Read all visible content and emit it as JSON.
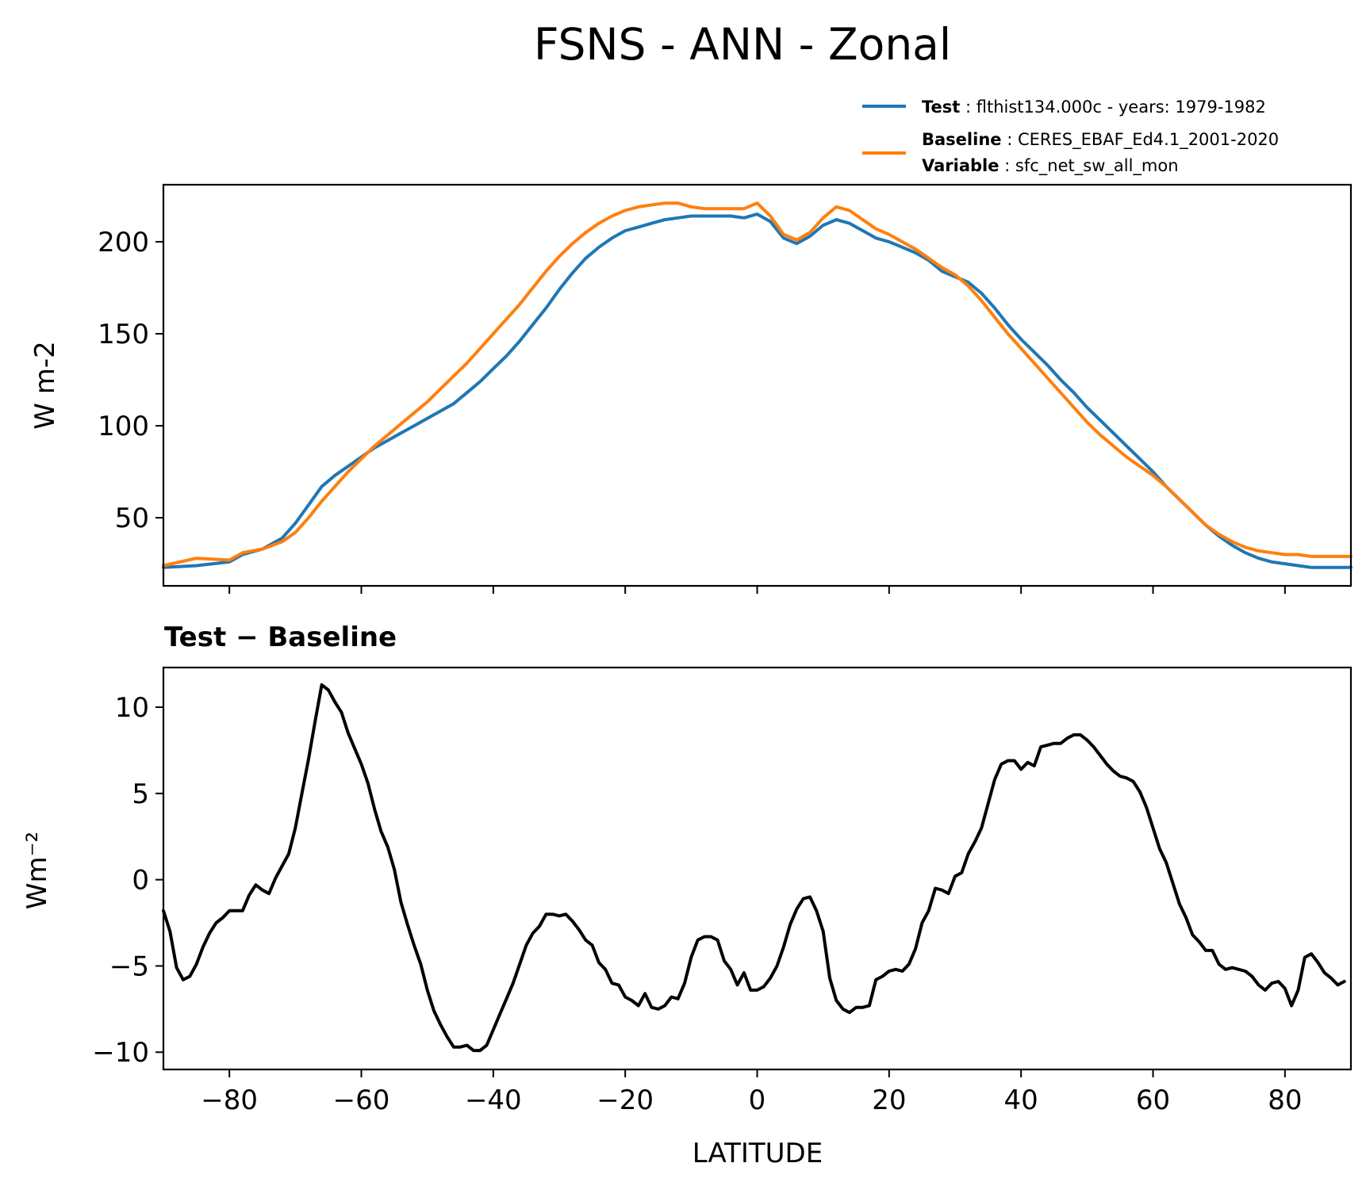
{
  "chart_data": {
    "title": "FSNS - ANN - Zonal",
    "xlabel": "LATITUDE",
    "xlim": [
      -90,
      90
    ],
    "xticks": [
      -80,
      -60,
      -40,
      -20,
      0,
      20,
      40,
      60,
      80
    ],
    "xtick_labels": [
      "−80",
      "−60",
      "−40",
      "−20",
      "0",
      "20",
      "40",
      "60",
      "80"
    ],
    "legend": {
      "position": "top-right",
      "entries": [
        {
          "key": "Test",
          "text": "flthist134.000c - years: 1979-1982",
          "color": "#1f77b4"
        },
        {
          "key": "Baseline",
          "text": "CERES_EBAF_Ed4.1_2001-2020",
          "color": "#ff7f0e"
        },
        {
          "key": "Variable",
          "text": "sfc_net_sw_all_mon"
        }
      ]
    },
    "panels": [
      {
        "type": "line",
        "ylabel": "W m-2",
        "ylim": [
          13,
          231
        ],
        "yticks": [
          50,
          100,
          150,
          200
        ],
        "ytick_labels": [
          "50",
          "100",
          "150",
          "200"
        ],
        "x": [
          -90,
          -85,
          -80,
          -78,
          -75,
          -72,
          -70,
          -68,
          -66,
          -64,
          -62,
          -60,
          -58,
          -56,
          -54,
          -52,
          -50,
          -48,
          -46,
          -44,
          -42,
          -40,
          -38,
          -36,
          -34,
          -32,
          -30,
          -28,
          -26,
          -24,
          -22,
          -20,
          -18,
          -16,
          -14,
          -12,
          -10,
          -8,
          -6,
          -4,
          -2,
          0,
          2,
          4,
          6,
          8,
          10,
          12,
          14,
          16,
          18,
          20,
          22,
          24,
          26,
          28,
          30,
          32,
          34,
          36,
          38,
          40,
          42,
          44,
          46,
          48,
          50,
          52,
          54,
          56,
          58,
          60,
          62,
          64,
          66,
          68,
          70,
          72,
          74,
          76,
          78,
          80,
          82,
          84,
          86,
          88,
          90
        ],
        "series": [
          {
            "name": "Test",
            "color": "#1f77b4",
            "values": [
              23,
              24,
              26,
              30,
              33,
              39,
              47,
              57,
              67,
              73,
              78,
              83,
              88,
              92,
              96,
              100,
              104,
              108,
              112,
              118,
              124,
              131,
              138,
              146,
              155,
              164,
              174,
              183,
              191,
              197,
              202,
              206,
              208,
              210,
              212,
              213,
              214,
              214,
              214,
              214,
              213,
              215,
              211,
              202,
              199,
              203,
              209,
              212,
              210,
              206,
              202,
              200,
              197,
              194,
              190,
              184,
              181,
              178,
              172,
              164,
              155,
              147,
              140,
              133,
              125,
              118,
              110,
              103,
              96,
              89,
              82,
              75,
              67,
              60,
              53,
              46,
              40,
              35,
              31,
              28,
              26,
              25,
              24,
              23,
              23,
              23,
              23
            ]
          },
          {
            "name": "Baseline",
            "color": "#ff7f0e",
            "values": [
              24,
              28,
              27,
              31,
              33,
              37,
              42,
              50,
              59,
              67,
              75,
              82,
              89,
              95,
              101,
              107,
              113,
              120,
              127,
              134,
              142,
              150,
              158,
              166,
              175,
              184,
              192,
              199,
              205,
              210,
              214,
              217,
              219,
              220,
              221,
              221,
              219,
              218,
              218,
              218,
              218,
              221,
              214,
              204,
              201,
              205,
              213,
              219,
              217,
              212,
              207,
              204,
              200,
              196,
              191,
              186,
              182,
              176,
              168,
              159,
              150,
              142,
              134,
              126,
              118,
              110,
              102,
              95,
              89,
              83,
              78,
              73,
              67,
              60,
              53,
              46,
              41,
              37,
              34,
              32,
              31,
              30,
              30,
              29,
              29,
              29,
              29
            ]
          }
        ]
      },
      {
        "type": "line",
        "title": "Test − Baseline",
        "ylabel": "Wm⁻²",
        "ylim": [
          -11,
          12.3
        ],
        "yticks": [
          -10,
          -5,
          0,
          5,
          10
        ],
        "ytick_labels": [
          "−10",
          "−5",
          "0",
          "5",
          "10"
        ],
        "x": [
          -90,
          -89,
          -88,
          -87,
          -86,
          -85,
          -84,
          -83,
          -82,
          -81,
          -80,
          -79,
          -78,
          -77,
          -76,
          -75,
          -74,
          -73,
          -72,
          -71,
          -70,
          -69,
          -68,
          -67,
          -66,
          -65,
          -64,
          -63,
          -62,
          -61,
          -60,
          -59,
          -58,
          -57,
          -56,
          -55,
          -54,
          -53,
          -52,
          -51,
          -50,
          -49,
          -48,
          -47,
          -46,
          -45,
          -44,
          -43,
          -42,
          -41,
          -40,
          -39,
          -38,
          -37,
          -36,
          -35,
          -34,
          -33,
          -32,
          -31,
          -30,
          -29,
          -28,
          -27,
          -26,
          -25,
          -24,
          -23,
          -22,
          -21,
          -20,
          -19,
          -18,
          -17,
          -16,
          -15,
          -14,
          -13,
          -12,
          -11,
          -10,
          -9,
          -8,
          -7,
          -6,
          -5,
          -4,
          -3,
          -2,
          -1,
          0,
          1,
          2,
          3,
          4,
          5,
          6,
          7,
          8,
          9,
          10,
          11,
          12,
          13,
          14,
          15,
          16,
          17,
          18,
          19,
          20,
          21,
          22,
          23,
          24,
          25,
          26,
          27,
          28,
          29,
          30,
          31,
          32,
          33,
          34,
          35,
          36,
          37,
          38,
          39,
          40,
          41,
          42,
          43,
          44,
          45,
          46,
          47,
          48,
          49,
          50,
          51,
          52,
          53,
          54,
          55,
          56,
          57,
          58,
          59,
          60,
          61,
          62,
          63,
          64,
          65,
          66,
          67,
          68,
          69,
          70,
          71,
          72,
          73,
          74,
          75,
          76,
          77,
          78,
          79,
          80,
          81,
          82,
          83,
          84,
          85,
          86,
          87,
          88,
          89,
          90
        ],
        "series": [
          {
            "name": "Test − Baseline",
            "color": "#000000",
            "values": [
              -1.8,
              -3.0,
              -5.1,
              -5.8,
              -5.6,
              -4.9,
              -3.9,
              -3.1,
              -2.5,
              -2.2,
              -1.8,
              -1.8,
              -1.8,
              -0.9,
              -0.3,
              -0.6,
              -0.8,
              0.1,
              0.8,
              1.5,
              3.0,
              5.0,
              7.0,
              9.2,
              11.3,
              11.0,
              10.3,
              9.7,
              8.5,
              7.6,
              6.7,
              5.6,
              4.1,
              2.8,
              1.9,
              0.6,
              -1.3,
              -2.6,
              -3.8,
              -4.9,
              -6.4,
              -7.6,
              -8.4,
              -9.1,
              -9.7,
              -9.7,
              -9.6,
              -9.9,
              -9.9,
              -9.6,
              -8.7,
              -7.8,
              -6.9,
              -6.0,
              -4.9,
              -3.8,
              -3.1,
              -2.7,
              -2.0,
              -2.0,
              -2.1,
              -2.0,
              -2.4,
              -2.9,
              -3.5,
              -3.8,
              -4.8,
              -5.2,
              -6.0,
              -6.1,
              -6.8,
              -7.0,
              -7.3,
              -6.6,
              -7.4,
              -7.5,
              -7.3,
              -6.8,
              -6.9,
              -6.0,
              -4.5,
              -3.5,
              -3.3,
              -3.3,
              -3.5,
              -4.7,
              -5.2,
              -6.1,
              -5.4,
              -6.4,
              -6.4,
              -6.2,
              -5.7,
              -5.0,
              -3.9,
              -2.6,
              -1.7,
              -1.1,
              -1.0,
              -1.8,
              -3.0,
              -5.7,
              -7.0,
              -7.5,
              -7.7,
              -7.4,
              -7.4,
              -7.3,
              -5.8,
              -5.6,
              -5.3,
              -5.2,
              -5.3,
              -4.9,
              -4.0,
              -2.5,
              -1.8,
              -0.5,
              -0.6,
              -0.8,
              0.2,
              0.4,
              1.5,
              2.2,
              3.0,
              4.4,
              5.8,
              6.7,
              6.9,
              6.9,
              6.4,
              6.8,
              6.6,
              7.7,
              7.8,
              7.9,
              7.9,
              8.2,
              8.4,
              8.4,
              8.1,
              7.7,
              7.2,
              6.7,
              6.3,
              6.0,
              5.9,
              5.7,
              5.1,
              4.2,
              3.0,
              1.8,
              1.0,
              -0.2,
              -1.4,
              -2.2,
              -3.2,
              -3.6,
              -4.1,
              -4.1,
              -4.9,
              -5.2,
              -5.1,
              -5.2,
              -5.3,
              -5.6,
              -6.1,
              -6.4,
              -6.0,
              -5.9,
              -6.3,
              -7.3,
              -6.4,
              -4.5,
              -4.3,
              -4.8,
              -5.4,
              -5.7,
              -6.1,
              -5.9
            ]
          }
        ]
      }
    ]
  }
}
